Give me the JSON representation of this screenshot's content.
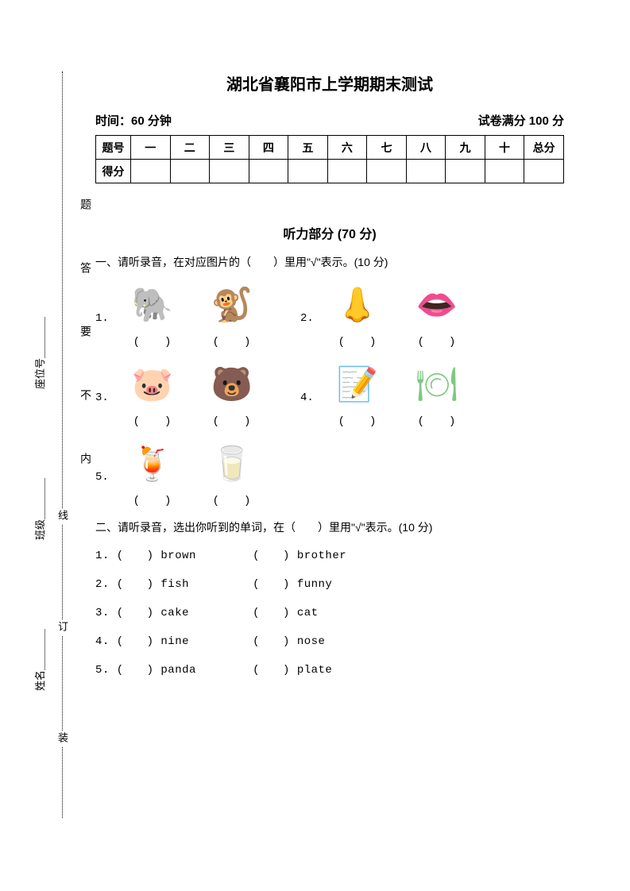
{
  "title": "湖北省襄阳市上学期期末测试",
  "meta": {
    "time_label": "时间：",
    "time_value": "60 分钟",
    "full_label": "试卷满分 ",
    "full_value": "100 分"
  },
  "score_table": {
    "row_label_1": "题号",
    "row_label_2": "得分",
    "cols": [
      "一",
      "二",
      "三",
      "四",
      "五",
      "六",
      "七",
      "八",
      "九",
      "十",
      "总分"
    ]
  },
  "listening": {
    "header": "听力部分 (70 分)",
    "q1_instr": "一、请听录音，在对应图片的（　　）里用\"√\"表示。(10 分)",
    "q2_instr": "二、请听录音，选出你听到的单词，在（　　）里用\"√\"表示。(10 分)",
    "paren": "(　　)",
    "numbers": [
      "1.",
      "2.",
      "3.",
      "4.",
      "5."
    ],
    "q1_images": [
      [
        {
          "name": "elephant",
          "emoji": "🐘",
          "color": "#d9a5d9"
        },
        {
          "name": "monkey",
          "emoji": "🐒",
          "color": "#888"
        }
      ],
      [
        {
          "name": "nose",
          "emoji": "👃",
          "color": "#e8b898"
        },
        {
          "name": "mouth",
          "emoji": "👄",
          "color": "#d82020"
        }
      ],
      [
        {
          "name": "pig",
          "emoji": "🐷",
          "color": "#f2a0c0"
        },
        {
          "name": "bear",
          "emoji": "🐻",
          "color": "#ddd"
        }
      ],
      [
        {
          "name": "pencilcase",
          "emoji": "📝",
          "color": "#e89848"
        },
        {
          "name": "plate",
          "emoji": "🍽",
          "color": "#7fc97f"
        }
      ],
      [
        {
          "name": "juice",
          "emoji": "🍹",
          "color": "#aaa"
        },
        {
          "name": "milk",
          "emoji": "🥛",
          "color": "#88c0e8"
        }
      ]
    ],
    "q2_words": [
      {
        "a": "brown",
        "b": "brother"
      },
      {
        "a": "fish",
        "b": "funny"
      },
      {
        "a": "cake",
        "b": "cat"
      },
      {
        "a": "nine",
        "b": "nose"
      },
      {
        "a": "panda",
        "b": "plate"
      }
    ]
  },
  "binding": {
    "zhuang": "装",
    "ding": "订",
    "xian": "线",
    "nei": "内",
    "bu": "不",
    "yao": "要",
    "da": "答",
    "ti": "题",
    "name": "姓名",
    "class": "班级",
    "seat": "座位号",
    "blank": "＿＿＿＿"
  },
  "colors": {
    "text": "#000000",
    "bg": "#ffffff"
  }
}
